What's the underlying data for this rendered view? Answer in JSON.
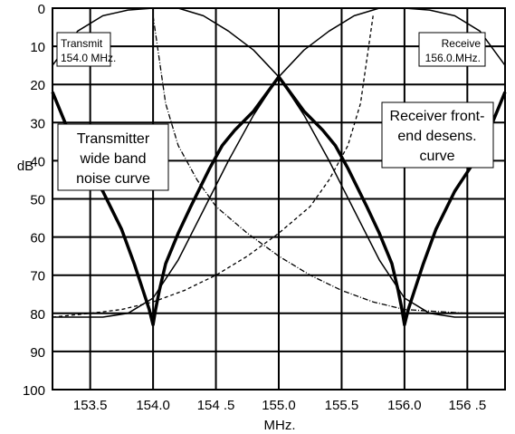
{
  "chart_data": {
    "type": "line",
    "xlabel": "MHz.",
    "ylabel": "dB",
    "xlim": [
      153.2,
      156.8
    ],
    "ylim": [
      0,
      100
    ],
    "y_inverted": true,
    "grid": true,
    "x_ticks": [
      153.5,
      154.0,
      154.5,
      155.0,
      155.5,
      156.0,
      156.5
    ],
    "x_tick_labels": [
      "153.5",
      "154.0",
      "154 .5",
      "155.0",
      "155.5",
      "156.0",
      "156 .5"
    ],
    "y_ticks": [
      0,
      10,
      20,
      30,
      40,
      50,
      60,
      70,
      80,
      90,
      100
    ],
    "y_tick_labels": [
      "0",
      "10",
      "20",
      "30",
      "40",
      "50",
      "60",
      "70",
      "80",
      "90",
      "100"
    ],
    "series": [
      {
        "style": "thin-solid",
        "points": [
          [
            153.2,
            15
          ],
          [
            153.4,
            6
          ],
          [
            153.6,
            2
          ],
          [
            153.8,
            0.5
          ],
          [
            154.0,
            0
          ],
          [
            154.2,
            0
          ],
          [
            154.4,
            2
          ],
          [
            154.6,
            6
          ],
          [
            154.8,
            11
          ],
          [
            155.0,
            18
          ],
          [
            155.2,
            28
          ],
          [
            155.4,
            40
          ],
          [
            155.6,
            53
          ],
          [
            155.8,
            66
          ],
          [
            156.0,
            76
          ],
          [
            156.2,
            80
          ],
          [
            156.4,
            81
          ],
          [
            156.6,
            81
          ],
          [
            156.8,
            81
          ]
        ]
      },
      {
        "style": "thin-solid",
        "points": [
          [
            153.2,
            81
          ],
          [
            153.4,
            81
          ],
          [
            153.6,
            81
          ],
          [
            153.8,
            80
          ],
          [
            154.0,
            76
          ],
          [
            154.2,
            66
          ],
          [
            154.4,
            53
          ],
          [
            154.6,
            40
          ],
          [
            154.8,
            28
          ],
          [
            155.0,
            18
          ],
          [
            155.2,
            11
          ],
          [
            155.4,
            6
          ],
          [
            155.6,
            2
          ],
          [
            155.8,
            0
          ],
          [
            156.0,
            0
          ],
          [
            156.2,
            0.5
          ],
          [
            156.4,
            2
          ],
          [
            156.6,
            6
          ],
          [
            156.8,
            15
          ]
        ]
      },
      {
        "style": "thick-solid",
        "points": [
          [
            153.2,
            22
          ],
          [
            153.4,
            38
          ],
          [
            153.6,
            48
          ],
          [
            153.75,
            58
          ],
          [
            153.85,
            67
          ],
          [
            153.92,
            74
          ],
          [
            153.97,
            79
          ],
          [
            154.0,
            83
          ],
          [
            154.02,
            79
          ],
          [
            154.05,
            74
          ],
          [
            154.1,
            67
          ],
          [
            154.2,
            59
          ],
          [
            154.3,
            52
          ],
          [
            154.45,
            42
          ],
          [
            154.55,
            36
          ],
          [
            154.65,
            32
          ],
          [
            154.8,
            27
          ],
          [
            155.0,
            18
          ],
          [
            155.2,
            27
          ],
          [
            155.35,
            32
          ],
          [
            155.45,
            36
          ],
          [
            155.55,
            42
          ],
          [
            155.7,
            52
          ],
          [
            155.8,
            59
          ],
          [
            155.9,
            67
          ],
          [
            155.95,
            74
          ],
          [
            155.98,
            79
          ],
          [
            156.0,
            83
          ],
          [
            156.03,
            79
          ],
          [
            156.08,
            74
          ],
          [
            156.15,
            67
          ],
          [
            156.25,
            58
          ],
          [
            156.4,
            48
          ],
          [
            156.6,
            38
          ],
          [
            156.8,
            22
          ]
        ]
      },
      {
        "style": "dash-dot",
        "points": [
          [
            154.0,
            2
          ],
          [
            154.1,
            25
          ],
          [
            154.2,
            36
          ],
          [
            154.35,
            45
          ],
          [
            154.5,
            52
          ],
          [
            154.75,
            59
          ],
          [
            155.0,
            65
          ],
          [
            155.25,
            70
          ],
          [
            155.5,
            74
          ],
          [
            155.75,
            77
          ],
          [
            156.0,
            79
          ],
          [
            156.5,
            80
          ],
          [
            156.8,
            80
          ]
        ]
      },
      {
        "style": "dashed",
        "points": [
          [
            153.2,
            81
          ],
          [
            153.5,
            80
          ],
          [
            153.75,
            79
          ],
          [
            154.0,
            77
          ],
          [
            154.25,
            74
          ],
          [
            154.5,
            70
          ],
          [
            154.75,
            65
          ],
          [
            155.0,
            59
          ],
          [
            155.25,
            52
          ],
          [
            155.4,
            45
          ],
          [
            155.55,
            36
          ],
          [
            155.65,
            25
          ],
          [
            155.75,
            2
          ]
        ]
      }
    ],
    "annotations": [
      {
        "lines": [
          "Transmit",
          "154.0 MHz."
        ]
      },
      {
        "lines": [
          "Receive",
          "156.0.MHz."
        ]
      },
      {
        "lines": [
          "Transmitter",
          "wide band",
          "noise curve"
        ]
      },
      {
        "lines": [
          "Receiver front-",
          "end desens.",
          "curve"
        ]
      }
    ]
  }
}
